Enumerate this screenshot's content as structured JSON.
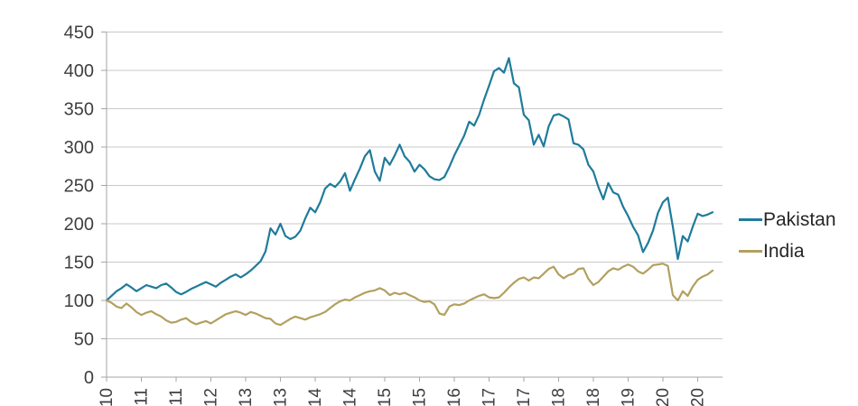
{
  "chart_data": {
    "type": "line",
    "title": "",
    "xlabel": "",
    "ylabel": "",
    "ylim": [
      0,
      450
    ],
    "y_tick_labels": [
      "0",
      "50",
      "100",
      "150",
      "200",
      "250",
      "300",
      "350",
      "400",
      "450"
    ],
    "x_tick_labels": [
      "10",
      "11",
      "11",
      "12",
      "13",
      "13",
      "14",
      "14",
      "15",
      "15",
      "16",
      "17",
      "17",
      "18",
      "18",
      "19",
      "20",
      "20"
    ],
    "points_per_x_tick": 7,
    "grid": "horizontal",
    "legend_position": "right",
    "series": [
      {
        "name": "Pakistan",
        "color": "#1F7B9B",
        "values": [
          100,
          106,
          112,
          116,
          121,
          117,
          112,
          116,
          120,
          118,
          116,
          120,
          122,
          117,
          111,
          108,
          111,
          115,
          118,
          121,
          124,
          121,
          118,
          123,
          127,
          131,
          134,
          130,
          134,
          139,
          145,
          151,
          164,
          194,
          186,
          200,
          184,
          180,
          183,
          191,
          207,
          221,
          215,
          228,
          246,
          252,
          248,
          255,
          266,
          243,
          258,
          272,
          288,
          296,
          268,
          256,
          286,
          277,
          289,
          303,
          288,
          281,
          268,
          277,
          271,
          262,
          258,
          257,
          261,
          274,
          289,
          302,
          315,
          333,
          328,
          342,
          362,
          380,
          399,
          403,
          397,
          416,
          383,
          378,
          342,
          335,
          303,
          316,
          301,
          327,
          341,
          343,
          340,
          336,
          305,
          303,
          297,
          277,
          268,
          248,
          232,
          253,
          241,
          238,
          222,
          210,
          196,
          185,
          163,
          175,
          191,
          214,
          228,
          234,
          196,
          154,
          184,
          177,
          196,
          213,
          210,
          212,
          215
        ]
      },
      {
        "name": "India",
        "color": "#B2A05F",
        "values": [
          100,
          97,
          92,
          90,
          96,
          91,
          85,
          81,
          84,
          86,
          82,
          79,
          74,
          71,
          72,
          75,
          77,
          72,
          69,
          71,
          73,
          70,
          74,
          78,
          82,
          84,
          86,
          84,
          81,
          85,
          83,
          80,
          77,
          76,
          70,
          68,
          72,
          76,
          79,
          77,
          75,
          78,
          80,
          82,
          85,
          90,
          95,
          99,
          101,
          100,
          104,
          107,
          110,
          112,
          113,
          116,
          113,
          107,
          110,
          108,
          110,
          107,
          104,
          100,
          98,
          99,
          95,
          83,
          81,
          92,
          95,
          94,
          96,
          100,
          103,
          106,
          108,
          104,
          103,
          104,
          110,
          117,
          123,
          128,
          130,
          126,
          130,
          129,
          135,
          141,
          144,
          134,
          129,
          133,
          135,
          141,
          142,
          128,
          120,
          124,
          131,
          138,
          142,
          140,
          144,
          147,
          144,
          138,
          135,
          140,
          146,
          147,
          148,
          145,
          107,
          100,
          112,
          106,
          118,
          127,
          131,
          134,
          139
        ]
      }
    ]
  },
  "legend": {
    "items": [
      {
        "label": "Pakistan",
        "color": "#1F7B9B"
      },
      {
        "label": "India",
        "color": "#B2A05F"
      }
    ]
  },
  "colors": {
    "axis": "#A6A6A6",
    "gridline": "#C8C8C8",
    "tick_label": "#3F3F3F",
    "background": "#FFFFFF"
  }
}
